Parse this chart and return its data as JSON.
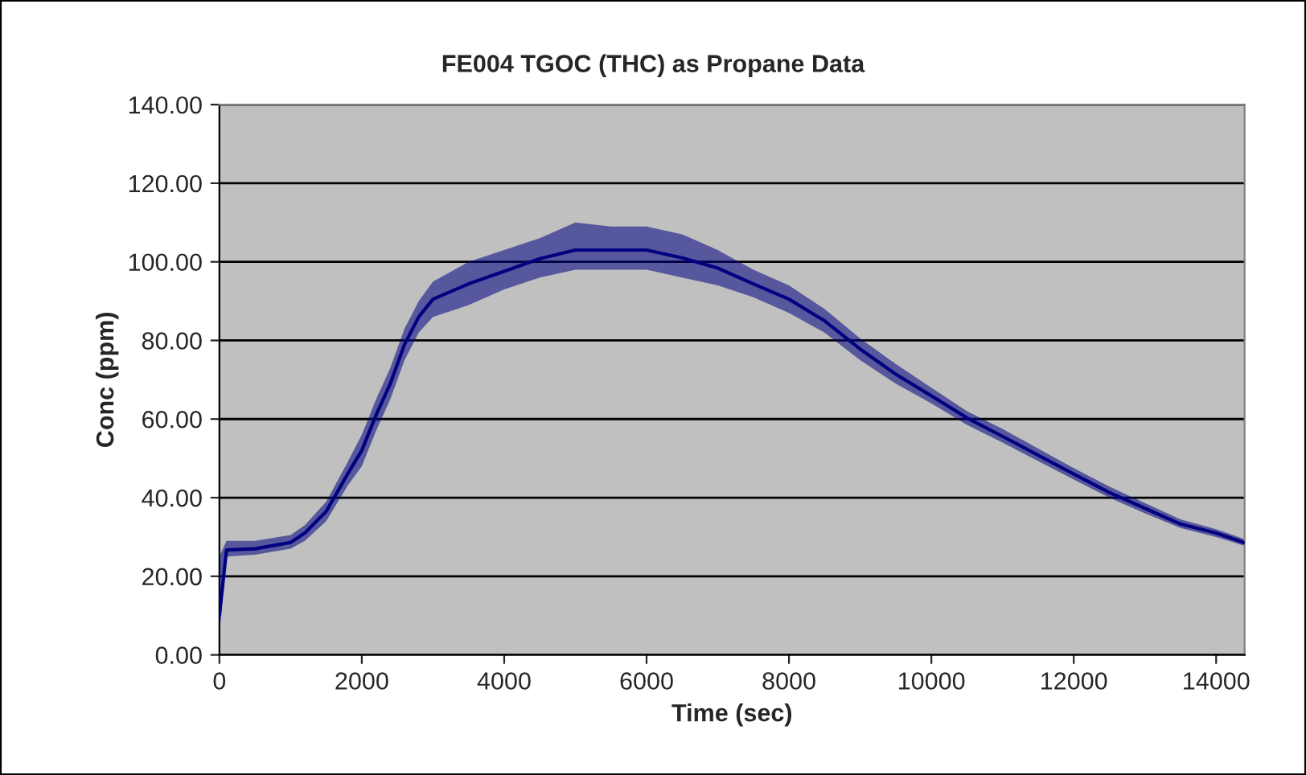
{
  "chart_data": {
    "type": "line",
    "title": "FE004 TGOC (THC) as Propane Data",
    "xlabel": "Time (sec)",
    "ylabel": "Conc (ppm)",
    "xlim": [
      0,
      14400
    ],
    "xticks": [
      0,
      2000,
      4000,
      6000,
      8000,
      10000,
      12000,
      14000
    ],
    "ylim": [
      0,
      140
    ],
    "yticks": [
      {
        "value": 0,
        "label": "0.00"
      },
      {
        "value": 20,
        "label": "20.00"
      },
      {
        "value": 40,
        "label": "40.00"
      },
      {
        "value": 60,
        "label": "60.00"
      },
      {
        "value": 80,
        "label": "80.00"
      },
      {
        "value": 100,
        "label": "100.00"
      },
      {
        "value": 120,
        "label": "120.00"
      },
      {
        "value": 140,
        "label": "140.00"
      }
    ],
    "grid": "y",
    "marker": "none",
    "line_style": "solid",
    "series": [
      {
        "color": "#000080",
        "x": [
          0,
          100,
          500,
          1000,
          1200,
          1500,
          1800,
          2000,
          2200,
          2400,
          2600,
          2800,
          3000,
          3500,
          4000,
          4500,
          5000,
          5500,
          6000,
          6500,
          7000,
          7500,
          8000,
          8500,
          9000,
          9500,
          10000,
          10500,
          11000,
          11500,
          12000,
          12500,
          13000,
          13500,
          14000,
          14386
        ],
        "values": [
          10,
          26.7,
          27,
          28.6,
          31,
          36.5,
          46,
          52,
          61,
          69,
          79,
          86,
          90.5,
          94.4,
          97.6,
          100.8,
          103,
          103,
          103,
          101,
          98.4,
          94.4,
          90.5,
          85,
          77.8,
          71.4,
          65.9,
          60.3,
          55.6,
          50.8,
          46,
          41.3,
          37.3,
          33.3,
          31,
          28.6
        ],
        "lower": [
          5,
          25,
          25.5,
          27,
          29,
          34,
          43,
          48,
          57,
          65,
          75,
          82,
          86,
          89,
          93,
          96,
          98,
          98,
          98,
          96,
          94,
          91,
          87,
          82,
          75,
          69,
          64,
          58.5,
          54,
          49.3,
          44.6,
          40,
          36,
          32.3,
          30,
          27.8
        ],
        "upper": [
          25,
          29,
          29,
          30.5,
          33,
          39,
          49,
          56,
          65,
          73,
          83,
          90,
          95,
          100,
          103,
          106,
          110,
          109,
          109,
          107,
          103,
          98,
          94,
          88,
          80.5,
          74,
          68,
          62,
          57.5,
          52.5,
          47.5,
          42.8,
          38.6,
          34.5,
          32,
          29.5
        ]
      }
    ]
  }
}
